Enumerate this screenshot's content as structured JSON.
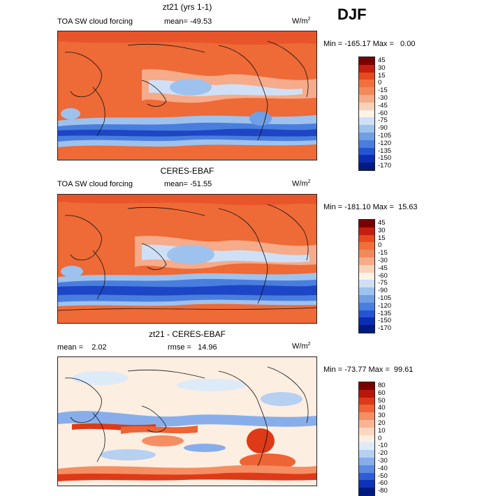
{
  "season": "DJF",
  "panels": [
    {
      "title": "zt21 (yrs 1-1)",
      "left_label": "TOA SW cloud forcing",
      "mid_label": "mean= -49.53",
      "units": "W/m",
      "units_sup": "2",
      "minmax": "Min = -165.17 Max =   0.00",
      "colorbar": {
        "colors": [
          "#7a0000",
          "#c41e0e",
          "#e64a1e",
          "#f0703c",
          "#f2895a",
          "#f6ab8a",
          "#fad2b8",
          "#fef3e6",
          "#cfe0f6",
          "#9ec2ee",
          "#709fe4",
          "#4a7ede",
          "#2454d4",
          "#0b2db4",
          "#001a7e"
        ],
        "labels": [
          "45",
          "30",
          "15",
          "0",
          "-15",
          "-30",
          "-45",
          "-60",
          "-75",
          "-90",
          "-105",
          "-120",
          "-135",
          "-150",
          "-170"
        ]
      }
    },
    {
      "title": "CERES-EBAF",
      "left_label": "TOA SW cloud forcing",
      "mid_label": "mean= -51.55",
      "units": "W/m",
      "units_sup": "2",
      "minmax": "Min = -181.10 Max =  15.63",
      "colorbar": {
        "colors": [
          "#7a0000",
          "#c41e0e",
          "#e64a1e",
          "#f0703c",
          "#f2895a",
          "#f6ab8a",
          "#fad2b8",
          "#fef3e6",
          "#cfe0f6",
          "#9ec2ee",
          "#709fe4",
          "#4a7ede",
          "#2454d4",
          "#0b2db4",
          "#001a7e"
        ],
        "labels": [
          "45",
          "30",
          "15",
          "0",
          "-15",
          "-30",
          "-45",
          "-60",
          "-75",
          "-90",
          "-105",
          "-120",
          "-135",
          "-150",
          "-170"
        ]
      }
    },
    {
      "title": "zt21 - CERES-EBAF",
      "left_label": "mean =    2.02",
      "mid_label": "rmse =   14.96",
      "units": "W/m",
      "units_sup": "2",
      "minmax": "Min = -73.77 Max =  99.61",
      "colorbar": {
        "colors": [
          "#7a0000",
          "#b8160a",
          "#de3a18",
          "#ee6434",
          "#f58e62",
          "#f8b596",
          "#fbd7c2",
          "#fdeee2",
          "#ddeaf8",
          "#b6d0f2",
          "#87aeea",
          "#5a8ae2",
          "#2e5ed6",
          "#0d34b8",
          "#001a7e"
        ],
        "labels": [
          "80",
          "60",
          "50",
          "40",
          "30",
          "20",
          "10",
          "0",
          "-10",
          "-20",
          "-30",
          "-40",
          "-50",
          "-60",
          "-80"
        ]
      }
    }
  ]
}
